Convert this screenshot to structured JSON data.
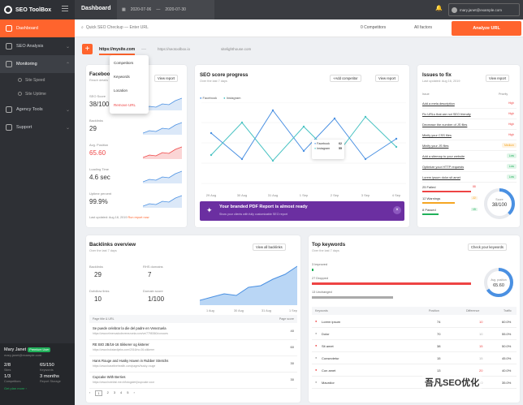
{
  "app": {
    "name": "SEO ToolBox"
  },
  "sidebar": {
    "items": [
      {
        "label": "Dashboard"
      },
      {
        "label": "SEO Analysis"
      },
      {
        "label": "Monitoring"
      },
      {
        "label": "Agency Tools"
      },
      {
        "label": "Support"
      }
    ],
    "subitems": [
      {
        "label": "Site Speed"
      },
      {
        "label": "Site Uptime"
      }
    ]
  },
  "user": {
    "name": "Mary Janet",
    "badge": "Premium User",
    "email": "mary.janet@example.com",
    "stats": [
      {
        "value": "2/8",
        "label": "Sites"
      },
      {
        "value": "65/150",
        "label": "Keywords"
      },
      {
        "value": "1/3",
        "label": "Competitors"
      },
      {
        "value": "3 months",
        "label": "Report Storage"
      }
    ],
    "upgrade": "Get plan more ›"
  },
  "topbar": {
    "title": "Dashboard",
    "date_from": "2020-07-06",
    "date_to": "2020-07-30",
    "user_email": "mary.janet@example.com"
  },
  "toolbar": {
    "quick_check": "Quick SEO Checkup — Enter URL",
    "competitors": "0 Competitors",
    "all_factors": "All factors",
    "analyze": "Analyze URL"
  },
  "tabs": [
    "https://mysite.com",
    "https://seotoolbox.io",
    "sitelighthouse.com"
  ],
  "dropdown": [
    "Competitors",
    "Keywords",
    "Location",
    "Remove URL"
  ],
  "facebook": {
    "title": "Facebook",
    "sub": "Reach details",
    "metrics": [
      {
        "label": "SEO Score",
        "value": "38/100",
        "color": "#4a90e2"
      },
      {
        "label": "Backlinks",
        "value": "29",
        "color": "#4a90e2"
      },
      {
        "label": "Avg. Position",
        "value": "65.60",
        "color": "#e44"
      },
      {
        "label": "Loading Time",
        "value": "4.6 sec",
        "color": "#4a90e2"
      },
      {
        "label": "Uptime percent",
        "value": "99.9%",
        "color": "#4a90e2"
      }
    ],
    "updated": "Last updated: Aug 18, 2019",
    "run": "Run report now"
  },
  "view_report": "View report",
  "score": {
    "title": "SEO score progress",
    "sub": "Over the last 7 days",
    "add": "Add competitor",
    "legend": [
      "Facebook",
      "Instagram"
    ],
    "tooltip": {
      "fb_label": "Facebook",
      "fb_val": "62",
      "ig_label": "Instagram",
      "ig_val": "55"
    },
    "xlabels": [
      "29 Aug",
      "30 Aug",
      "31 Aug",
      "1 Sep",
      "2 Sep",
      "3 Sep",
      "4 Sep"
    ]
  },
  "chart_data": {
    "type": "line",
    "categories": [
      "29 Aug",
      "30 Aug",
      "31 Aug",
      "1 Sep",
      "2 Sep",
      "3 Sep",
      "4 Sep"
    ],
    "series": [
      {
        "name": "Facebook",
        "values": [
          62,
          30,
          90,
          40,
          80,
          30,
          55
        ]
      },
      {
        "name": "Instagram",
        "values": [
          35,
          75,
          28,
          70,
          32,
          82,
          45
        ]
      }
    ]
  },
  "promo": {
    "title": "Your branded PDF Report is almost ready",
    "sub": "Show your clients with fully customizable SEO report"
  },
  "issues": {
    "title": "Issues to fix",
    "sub": "Last updated: Aug 16, 2019",
    "col_issue": "Issue",
    "col_priority": "Priority",
    "rows": [
      {
        "t": "Add a meta description",
        "p": "High"
      },
      {
        "t": "Fix URLs that are not SEO friendly",
        "p": "High"
      },
      {
        "t": "Decrease the number of JS files",
        "p": "High"
      },
      {
        "t": "Minify your CSS files",
        "p": "High"
      },
      {
        "t": "Minify your JS files",
        "p": "Medium"
      },
      {
        "t": "Add a sitemap to your website",
        "p": "Low"
      },
      {
        "t": "Optimize your HTTP requests",
        "p": "Low"
      },
      {
        "t": "Lorem ipsum dolor sit amet",
        "p": "Low"
      }
    ],
    "summary": [
      {
        "label": "25 Failed",
        "count": "88"
      },
      {
        "label": "12 Warnings",
        "count": "22"
      },
      {
        "label": "8 Passed",
        "count": "15"
      }
    ],
    "score_label": "Score",
    "score": "38/100"
  },
  "backlinks": {
    "title": "Backlinks overview",
    "sub": "Over the last 7 days",
    "view": "View all backlinks",
    "metrics": [
      {
        "label": "Backlinks",
        "value": "29"
      },
      {
        "label": "RHS domains",
        "value": "7"
      },
      {
        "label": "Dofollow links",
        "value": "10"
      },
      {
        "label": "Domain score",
        "value": "1/100"
      }
    ],
    "xlabels": [
      "1 Aug",
      "30 Aug",
      "31 Aug",
      "1 Sep"
    ],
    "table_head": [
      "Page title & URL",
      "Page score"
    ],
    "rows": [
      {
        "t": "Se puede celebrar la die del padre en Venezuela",
        "u": "https://www.elmercadodevenezuela.com/ve/7798360/conoces",
        "s": "40"
      },
      {
        "t": "RE BIO 2B/16-16 Sikkerer og kisterer",
        "u": "https://www.bokstavkjeks.com/2016/no-06-sikkerer",
        "s": "60"
      },
      {
        "t": "Hans Rouge and Husky Haven in Rubber Stretchs",
        "u": "https://www.baselinehealth.com/pages/husky-rouge",
        "s": "30"
      },
      {
        "t": "Cupcake With Berries",
        "u": "https://www.hoteldsl.me.nl/fotogalerij/cupcake-voor",
        "s": "30"
      }
    ],
    "pages": [
      "1",
      "2",
      "3",
      "4",
      "5"
    ]
  },
  "keywords": {
    "title": "Top keywords",
    "sub": "Over the last 7 days",
    "check": "Check your keywords",
    "bars": [
      {
        "label": "3 Improved"
      },
      {
        "label": "27 Dropped"
      },
      {
        "label": "13 Unchanged"
      }
    ],
    "donut_label": "Avg. position",
    "donut_val": "65.60",
    "head": [
      "Keywords",
      "Position",
      "Difference",
      "Traffic"
    ],
    "rows": [
      {
        "k": "Lorem ipsum",
        "p": "74",
        "d": "10",
        "t": "60.0%",
        "c": "#e44"
      },
      {
        "k": "Dolor",
        "p": "70",
        "d": "10",
        "t": "55.0%",
        "c": "#aaa"
      },
      {
        "k": "Sit amet",
        "p": "38",
        "d": "15",
        "t": "50.0%",
        "c": "#e44"
      },
      {
        "k": "Consectetur",
        "p": "15",
        "d": "15",
        "t": "45.0%",
        "c": "#aaa"
      },
      {
        "k": "Con amet",
        "p": "13",
        "d": "20",
        "t": "40.0%",
        "c": "#e44"
      },
      {
        "k": "Maurdior",
        "p": "10",
        "d": "10",
        "t": "35.0%",
        "c": "#aaa"
      }
    ]
  },
  "watermark": "吾凡SEO优化"
}
